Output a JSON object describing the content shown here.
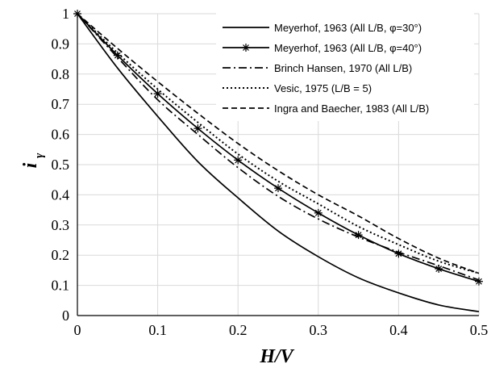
{
  "chart_data": {
    "type": "line",
    "xlabel": "H/V",
    "ylabel": "i",
    "ylabel_sub": "γ",
    "xlim": [
      0,
      0.5
    ],
    "ylim": [
      0,
      1
    ],
    "xticks": [
      "0",
      "0.1",
      "0.2",
      "0.3",
      "0.4",
      "0.5"
    ],
    "yticks": [
      "0",
      "0.1",
      "0.2",
      "0.3",
      "0.4",
      "0.5",
      "0.6",
      "0.7",
      "0.8",
      "0.9",
      "1"
    ],
    "grid": true,
    "legend_position": "top-right",
    "series": [
      {
        "name": "Meyerhof, 1963 (All L/B, φ=30°)",
        "style": "solid",
        "marker": "none",
        "color": "#000000",
        "x": [
          0,
          0.05,
          0.1,
          0.15,
          0.2,
          0.25,
          0.3,
          0.35,
          0.4,
          0.45,
          0.5
        ],
        "y": [
          1.0,
          0.82,
          0.66,
          0.51,
          0.39,
          0.28,
          0.195,
          0.125,
          0.075,
          0.035,
          0.013
        ]
      },
      {
        "name": "Meyerhof, 1963 (All L/B, φ=40°)",
        "style": "solid",
        "marker": "asterisk",
        "color": "#000000",
        "x": [
          0,
          0.05,
          0.1,
          0.15,
          0.2,
          0.25,
          0.3,
          0.35,
          0.4,
          0.45,
          0.5
        ],
        "y": [
          1.0,
          0.862,
          0.735,
          0.62,
          0.515,
          0.422,
          0.34,
          0.267,
          0.205,
          0.155,
          0.113
        ]
      },
      {
        "name": "Brinch Hansen, 1970 (All L/B)",
        "style": "dashdot",
        "marker": "none",
        "color": "#000000",
        "x": [
          0,
          0.05,
          0.1,
          0.15,
          0.2,
          0.25,
          0.3,
          0.35,
          0.4,
          0.45,
          0.5
        ],
        "y": [
          1.0,
          0.855,
          0.715,
          0.6,
          0.49,
          0.395,
          0.32,
          0.26,
          0.21,
          0.165,
          0.118
        ]
      },
      {
        "name": "Vesic, 1975 (L/B = 5)",
        "style": "dotted",
        "marker": "none",
        "color": "#000000",
        "x": [
          0,
          0.05,
          0.1,
          0.15,
          0.2,
          0.25,
          0.3,
          0.35,
          0.4,
          0.45,
          0.5
        ],
        "y": [
          1.0,
          0.87,
          0.75,
          0.64,
          0.535,
          0.445,
          0.37,
          0.295,
          0.235,
          0.18,
          0.14
        ]
      },
      {
        "name": "Ingra and Baecher, 1983 (All L/B)",
        "style": "dashed",
        "marker": "none",
        "color": "#000000",
        "x": [
          0,
          0.05,
          0.1,
          0.15,
          0.2,
          0.25,
          0.3,
          0.35,
          0.4,
          0.45,
          0.5
        ],
        "y": [
          1.0,
          0.885,
          0.775,
          0.67,
          0.57,
          0.48,
          0.4,
          0.33,
          0.255,
          0.19,
          0.14
        ]
      }
    ]
  }
}
